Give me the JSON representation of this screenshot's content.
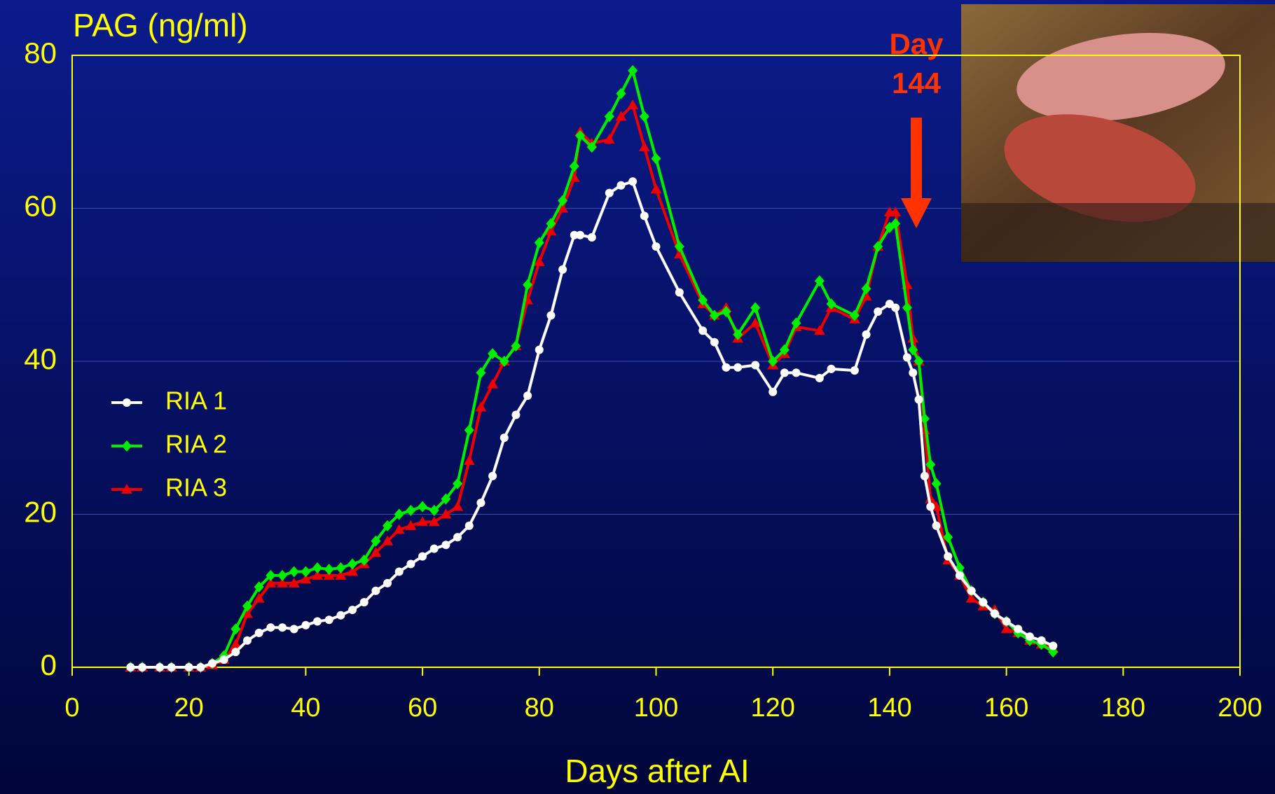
{
  "chart_data": {
    "type": "line",
    "title": "PAG (ng/ml)",
    "x_label": "Days after AI",
    "annotation": [
      "Day",
      "144"
    ],
    "x": [
      10,
      12,
      15,
      17,
      20,
      22,
      24,
      26,
      28,
      30,
      32,
      34,
      36,
      38,
      40,
      42,
      44,
      46,
      48,
      50,
      52,
      54,
      56,
      58,
      60,
      62,
      64,
      66,
      68,
      70,
      72,
      74,
      76,
      78,
      80,
      82,
      84,
      86,
      87,
      89,
      92,
      94,
      96,
      98,
      100,
      104,
      108,
      110,
      112,
      114,
      117,
      120,
      122,
      124,
      128,
      130,
      134,
      136,
      138,
      140,
      141,
      143,
      144,
      145,
      146,
      147,
      148,
      150,
      152,
      154,
      156,
      158,
      160,
      162,
      164,
      166,
      168
    ],
    "series": [
      {
        "name": "RIA 1",
        "color": "#ffffff",
        "marker": "circle",
        "values": [
          0,
          0,
          0,
          0,
          0,
          0,
          0.5,
          1,
          2,
          3.5,
          4.5,
          5.2,
          5.2,
          5,
          5.5,
          6,
          6.2,
          6.8,
          7.5,
          8.5,
          10,
          11,
          12.5,
          13.5,
          14.5,
          15.5,
          16,
          17,
          18.5,
          21.5,
          25,
          30,
          33,
          35.5,
          41.5,
          46,
          52,
          56.5,
          56.5,
          56.2,
          62,
          63,
          63.5,
          59,
          55,
          49,
          44,
          42.5,
          39.2,
          39.2,
          39.5,
          36,
          38.5,
          38.5,
          37.8,
          39,
          38.8,
          43.5,
          46.5,
          47.5,
          47,
          40.5,
          38.5,
          35,
          25,
          21,
          18.5,
          14.5,
          12,
          10,
          8.5,
          7,
          6,
          5,
          4,
          3.5,
          2.8
        ]
      },
      {
        "name": "RIA 2",
        "color": "#00ee00",
        "marker": "diamond",
        "values": [
          0,
          0,
          0,
          0,
          0,
          0,
          0.5,
          1.5,
          5,
          8,
          10.5,
          12,
          12,
          12.5,
          12.5,
          13,
          12.8,
          13,
          13.5,
          14,
          16.5,
          18.5,
          20,
          20.5,
          21,
          20.5,
          22,
          24,
          31,
          38.5,
          41,
          40,
          42,
          50,
          55.5,
          58,
          61,
          65.5,
          69.5,
          68,
          72,
          75,
          78,
          72,
          66.5,
          55,
          48,
          46,
          46.5,
          43.5,
          47,
          40,
          41.5,
          45,
          50.5,
          47.5,
          46,
          49.5,
          55,
          57.5,
          58,
          47,
          41.5,
          40,
          32.5,
          26.5,
          24,
          17,
          13,
          10,
          8.5,
          7,
          6,
          4.5,
          3.5,
          3,
          2
        ]
      },
      {
        "name": "RIA 3",
        "color": "#ee0000",
        "marker": "triangle",
        "values": [
          0,
          0,
          0,
          0,
          0,
          0,
          0.3,
          1,
          3,
          7,
          9,
          11,
          11,
          11,
          11.5,
          12,
          12,
          12,
          12.5,
          13.5,
          15,
          16.5,
          18,
          18.5,
          19,
          19,
          20,
          21,
          27,
          34,
          37,
          40,
          42,
          48,
          53,
          57,
          60,
          64,
          70,
          68.5,
          69,
          72,
          73.5,
          68,
          62.5,
          54,
          47.5,
          46,
          47,
          43,
          45,
          39.5,
          41,
          44.5,
          44,
          47,
          45.5,
          48.5,
          55,
          59.5,
          59.5,
          50,
          43,
          40,
          31,
          22,
          21,
          14,
          12,
          9,
          8,
          7.5,
          5,
          4.5,
          3.5,
          3,
          2.5
        ]
      }
    ],
    "xlim": [
      0,
      200
    ],
    "xticks": [
      0,
      20,
      40,
      60,
      80,
      100,
      120,
      140,
      160,
      180,
      200
    ],
    "ylim": [
      0,
      80
    ],
    "yticks": [
      0,
      20,
      40,
      60,
      80
    ],
    "grid": true
  }
}
